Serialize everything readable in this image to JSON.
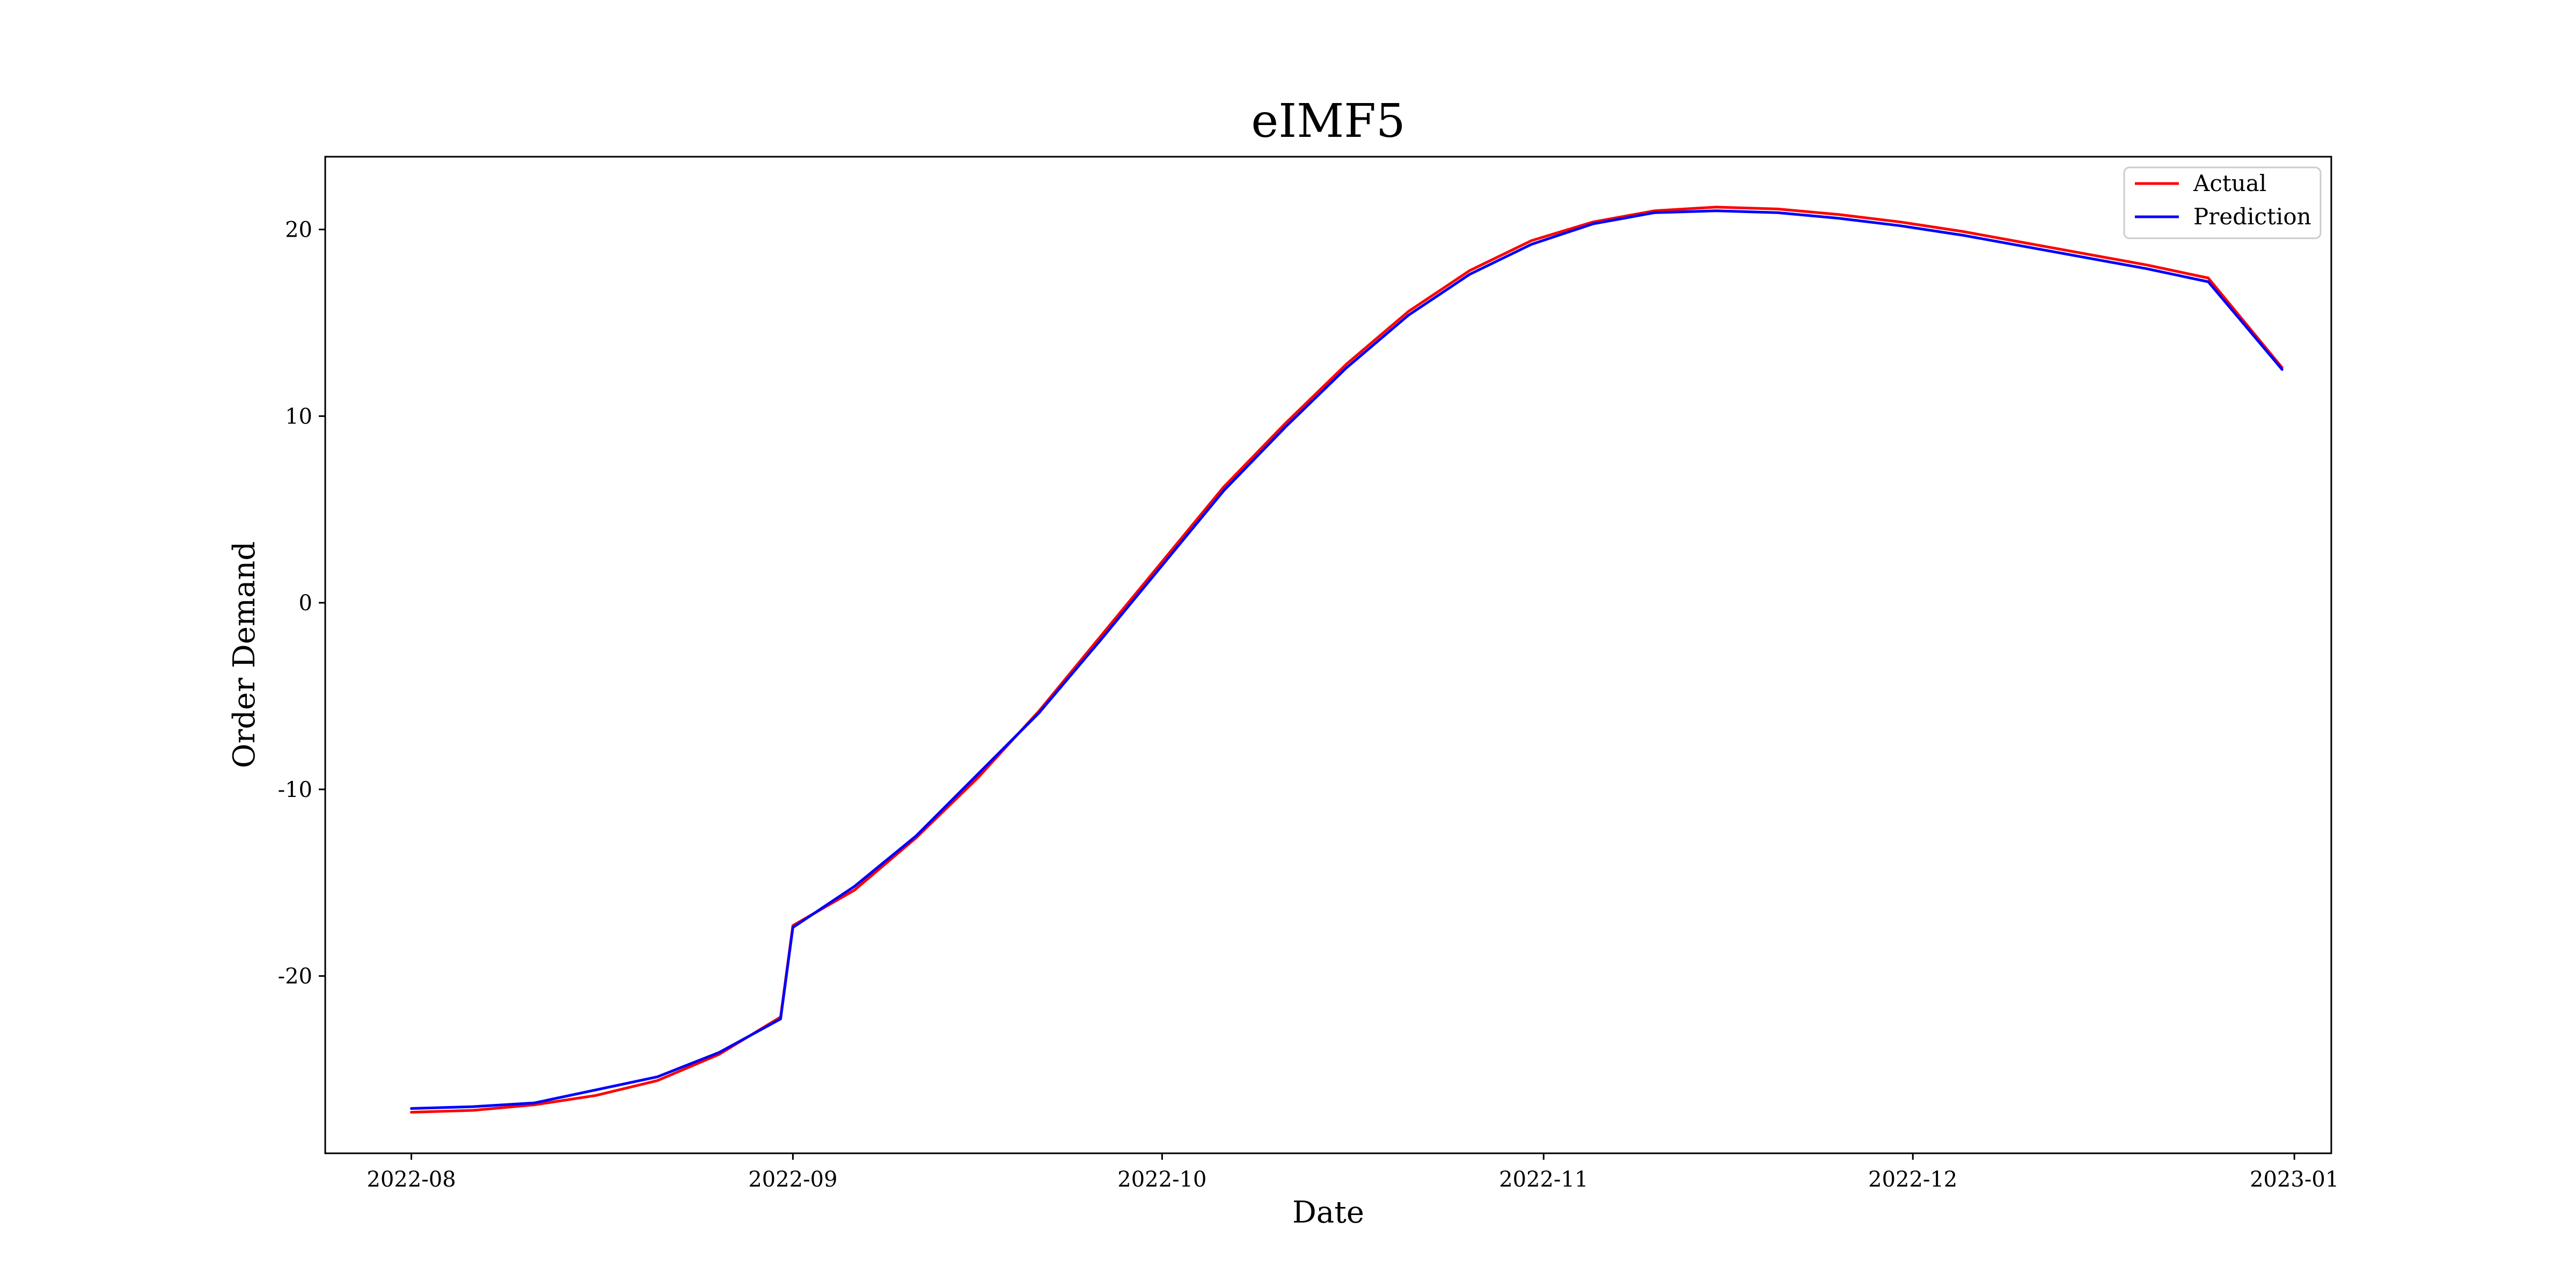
{
  "chart_data": {
    "type": "line",
    "title": "eIMF5",
    "xlabel": "Date",
    "ylabel": "Order Demand",
    "x_ticks": [
      "2022-08",
      "2022-09",
      "2022-10",
      "2022-11",
      "2022-12",
      "2023-01"
    ],
    "y_ticks": [
      "-20",
      "-10",
      "0",
      "10",
      "20"
    ],
    "xlim": [
      "2022-07-25",
      "2023-01-04"
    ],
    "ylim": [
      -29.5,
      23.9
    ],
    "legend_position": "top-right",
    "grid": false,
    "series": [
      {
        "name": "Actual",
        "color": "#ff0000",
        "points": [
          [
            "2022-08-01",
            -27.3
          ],
          [
            "2022-08-06",
            -27.2
          ],
          [
            "2022-08-11",
            -26.9
          ],
          [
            "2022-08-16",
            -26.4
          ],
          [
            "2022-08-21",
            -25.6
          ],
          [
            "2022-08-26",
            -24.2
          ],
          [
            "2022-08-31",
            -22.2
          ],
          [
            "2022-09-01",
            -17.3
          ],
          [
            "2022-09-06",
            -15.4
          ],
          [
            "2022-09-11",
            -12.6
          ],
          [
            "2022-09-16",
            -9.4
          ],
          [
            "2022-09-21",
            -5.8
          ],
          [
            "2022-09-26",
            -1.8
          ],
          [
            "2022-10-01",
            2.2
          ],
          [
            "2022-10-06",
            6.2
          ],
          [
            "2022-10-11",
            9.6
          ],
          [
            "2022-10-16",
            12.8
          ],
          [
            "2022-10-21",
            15.6
          ],
          [
            "2022-10-26",
            17.8
          ],
          [
            "2022-10-31",
            19.4
          ],
          [
            "2022-11-05",
            20.4
          ],
          [
            "2022-11-10",
            21.0
          ],
          [
            "2022-11-15",
            21.2
          ],
          [
            "2022-11-20",
            21.1
          ],
          [
            "2022-11-25",
            20.8
          ],
          [
            "2022-11-30",
            20.4
          ],
          [
            "2022-12-05",
            19.9
          ],
          [
            "2022-12-10",
            19.3
          ],
          [
            "2022-12-15",
            18.7
          ],
          [
            "2022-12-20",
            18.1
          ],
          [
            "2022-12-25",
            17.4
          ],
          [
            "2022-12-31",
            12.6
          ]
        ]
      },
      {
        "name": "Prediction",
        "color": "#0000ff",
        "points": [
          [
            "2022-08-01",
            -27.1
          ],
          [
            "2022-08-06",
            -27.0
          ],
          [
            "2022-08-11",
            -26.8
          ],
          [
            "2022-08-16",
            -26.1
          ],
          [
            "2022-08-21",
            -25.4
          ],
          [
            "2022-08-26",
            -24.1
          ],
          [
            "2022-08-31",
            -22.3
          ],
          [
            "2022-09-01",
            -17.4
          ],
          [
            "2022-09-06",
            -15.2
          ],
          [
            "2022-09-11",
            -12.5
          ],
          [
            "2022-09-16",
            -9.2
          ],
          [
            "2022-09-21",
            -5.9
          ],
          [
            "2022-09-26",
            -2.0
          ],
          [
            "2022-10-01",
            2.0
          ],
          [
            "2022-10-06",
            6.0
          ],
          [
            "2022-10-11",
            9.4
          ],
          [
            "2022-10-16",
            12.6
          ],
          [
            "2022-10-21",
            15.4
          ],
          [
            "2022-10-26",
            17.6
          ],
          [
            "2022-10-31",
            19.2
          ],
          [
            "2022-11-05",
            20.3
          ],
          [
            "2022-11-10",
            20.9
          ],
          [
            "2022-11-15",
            21.0
          ],
          [
            "2022-11-20",
            20.9
          ],
          [
            "2022-11-25",
            20.6
          ],
          [
            "2022-11-30",
            20.2
          ],
          [
            "2022-12-05",
            19.7
          ],
          [
            "2022-12-10",
            19.1
          ],
          [
            "2022-12-15",
            18.5
          ],
          [
            "2022-12-20",
            17.9
          ],
          [
            "2022-12-25",
            17.2
          ],
          [
            "2022-12-31",
            12.5
          ]
        ]
      }
    ]
  }
}
